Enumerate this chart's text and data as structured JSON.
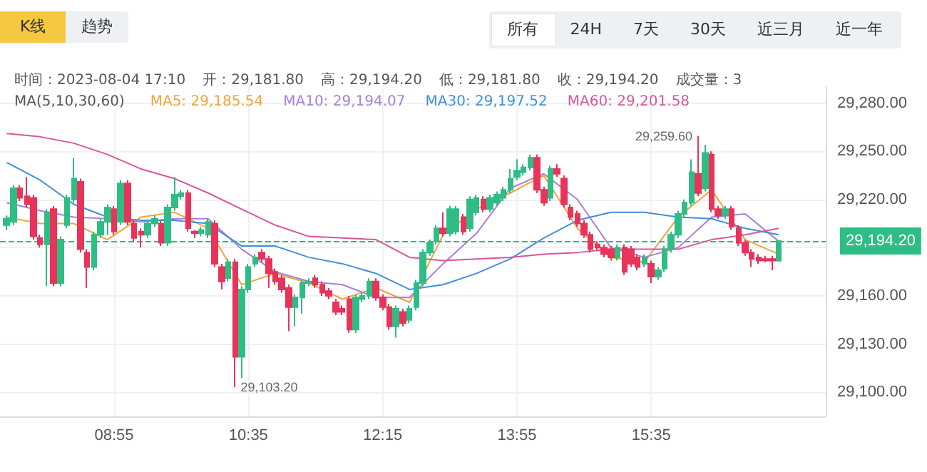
{
  "chart_data": {
    "type": "candlestick",
    "x": [
      7.5833,
      7.6667,
      7.75,
      7.8333,
      7.9167,
      8.0,
      8.0833,
      8.1667,
      8.25,
      8.3333,
      8.4167,
      8.5,
      8.5833,
      8.6667,
      8.75,
      8.8333,
      8.9167,
      9.0,
      9.0833,
      9.1667,
      9.25,
      9.3333,
      9.4167,
      9.5,
      9.5833,
      9.6667,
      9.75,
      9.8333,
      9.9167,
      10.0,
      10.0833,
      10.1667,
      10.25,
      10.3333,
      10.4167,
      10.5,
      10.5833,
      10.6667,
      10.75,
      10.8333,
      10.9167,
      11.0,
      11.0833,
      11.1667,
      11.25,
      11.3333,
      11.4167,
      11.5,
      11.5833,
      11.6667,
      11.75,
      11.8333,
      11.9167,
      12.0,
      12.0833,
      12.1667,
      12.25,
      12.3333,
      12.4167,
      12.5,
      12.5833,
      12.6667,
      12.75,
      12.8333,
      12.9167,
      13.0,
      13.0833,
      13.1667,
      13.25,
      13.3333,
      13.4167,
      13.5,
      13.5833,
      13.6667,
      13.75,
      13.8333,
      13.9167,
      14.0,
      14.0833,
      14.1667,
      14.25,
      14.3333,
      14.4167,
      14.5,
      14.5833,
      14.6667,
      14.75,
      14.8333,
      14.9167,
      15.0,
      15.0833,
      15.1667,
      15.25,
      15.3333,
      15.4167,
      15.5,
      15.5833,
      15.6667,
      15.75,
      15.8333,
      15.9167,
      16.0,
      16.0833,
      16.1667,
      16.25,
      16.3333,
      16.4167,
      16.5,
      16.5833,
      16.6667,
      16.75,
      16.8333,
      16.9167,
      17.0,
      17.0833,
      17.1667
    ],
    "ohlc": [
      [
        29204,
        29210,
        29201,
        29208
      ],
      [
        29206,
        29229,
        29204,
        29227
      ],
      [
        29227,
        29229,
        29219,
        29221
      ],
      [
        29222,
        29234,
        29215,
        29217
      ],
      [
        29221,
        29223,
        29195,
        29197
      ],
      [
        29196,
        29198,
        29190,
        29192
      ],
      [
        29192,
        29214,
        29166,
        29212
      ],
      [
        29214,
        29216,
        29166,
        29168
      ],
      [
        29168,
        29197,
        29166,
        29195
      ],
      [
        29204,
        29223,
        29202,
        29221
      ],
      [
        29220,
        29246,
        29218,
        29233
      ],
      [
        29231,
        29233,
        29187,
        29189
      ],
      [
        29187,
        29189,
        29165,
        29178
      ],
      [
        29178,
        29200,
        29176,
        29198
      ],
      [
        29198,
        29208,
        29196,
        29206
      ],
      [
        29206,
        29217,
        29198,
        29215
      ],
      [
        29214,
        29216,
        29198,
        29200
      ],
      [
        29206,
        29232,
        29204,
        29230
      ],
      [
        29230,
        29232,
        29204,
        29206
      ],
      [
        29205,
        29207,
        29194,
        29196
      ],
      [
        29200,
        29202,
        29190,
        29198
      ],
      [
        29198,
        29207,
        29196,
        29205
      ],
      [
        29205,
        29210,
        29203,
        29208
      ],
      [
        29205,
        29207,
        29191,
        29193
      ],
      [
        29193,
        29217,
        29191,
        29215
      ],
      [
        29215,
        29234,
        29213,
        29223
      ],
      [
        29222,
        29226,
        29220,
        29224
      ],
      [
        29224,
        29226,
        29200,
        29202
      ],
      [
        29200,
        29201,
        29196,
        29199
      ],
      [
        29199,
        29203,
        29197,
        29201
      ],
      [
        29198,
        29208,
        29196,
        29206
      ],
      [
        29205,
        29207,
        29178,
        29180
      ],
      [
        29178,
        29180,
        29164,
        29169
      ],
      [
        29171,
        29183,
        29169,
        29181
      ],
      [
        29181,
        29183,
        29103.2,
        29122
      ],
      [
        29122,
        29166,
        29109,
        29164
      ],
      [
        29164,
        29180,
        29162,
        29178
      ],
      [
        29180,
        29186,
        29178,
        29184
      ],
      [
        29187,
        29189,
        29181,
        29183
      ],
      [
        29183,
        29185,
        29165,
        29174
      ],
      [
        29175,
        29177,
        29167,
        29169
      ],
      [
        29171,
        29173,
        29162,
        29164
      ],
      [
        29165,
        29167,
        29138,
        29153
      ],
      [
        29153,
        29161,
        29141,
        29159
      ],
      [
        29159,
        29170,
        29149,
        29168
      ],
      [
        29168,
        29171,
        29166,
        29169
      ],
      [
        29171,
        29173,
        29165,
        29167
      ],
      [
        29167,
        29169,
        29160,
        29162
      ],
      [
        29163,
        29165,
        29158,
        29160
      ],
      [
        29156,
        29158,
        29148,
        29150
      ],
      [
        29152,
        29154,
        29148,
        29150
      ],
      [
        29158,
        29160,
        29137,
        29139
      ],
      [
        29139,
        29161,
        29137,
        29159
      ],
      [
        29158,
        29162,
        29156,
        29160
      ],
      [
        29160,
        29171,
        29158,
        29169
      ],
      [
        29169,
        29171,
        29157,
        29159
      ],
      [
        29159,
        29161,
        29151,
        29153
      ],
      [
        29153,
        29155,
        29139,
        29141
      ],
      [
        29141,
        29154,
        29134,
        29152
      ],
      [
        29150,
        29152,
        29141,
        29143
      ],
      [
        29145,
        29154,
        29143,
        29152
      ],
      [
        29153,
        29170,
        29151,
        29168
      ],
      [
        29168,
        29189,
        29166,
        29187
      ],
      [
        29187,
        29195,
        29185,
        29193
      ],
      [
        29194,
        29204,
        29192,
        29202
      ],
      [
        29202,
        29212,
        29197,
        29199
      ],
      [
        29199,
        29216,
        29197,
        29214
      ],
      [
        29200,
        29216,
        29198,
        29214
      ],
      [
        29209,
        29211,
        29198,
        29200
      ],
      [
        29202,
        29222,
        29200,
        29220
      ],
      [
        29212,
        29223,
        29210,
        29221
      ],
      [
        29220,
        29222,
        29212,
        29214
      ],
      [
        29214,
        29223,
        29212,
        29221
      ],
      [
        29218,
        29225,
        29216,
        29223
      ],
      [
        29221,
        29228,
        29219,
        29226
      ],
      [
        29226,
        29239,
        29224,
        29233
      ],
      [
        29234,
        29245,
        29232,
        29238
      ],
      [
        29237,
        29242,
        29235,
        29240
      ],
      [
        29240,
        29248,
        29238,
        29246
      ],
      [
        29246,
        29248,
        29224,
        29226
      ],
      [
        29226,
        29228,
        29216,
        29218
      ],
      [
        29221,
        29241,
        29219,
        29239
      ],
      [
        29239,
        29242,
        29234,
        29236
      ],
      [
        29233,
        29235,
        29215,
        29217
      ],
      [
        29215,
        29217,
        29207,
        29209
      ],
      [
        29211,
        29213,
        29203,
        29205
      ],
      [
        29205,
        29207,
        29196,
        29198
      ],
      [
        29198,
        29200,
        29187,
        29189
      ],
      [
        29192,
        29194,
        29188,
        29190
      ],
      [
        29190,
        29192,
        29184,
        29186
      ],
      [
        29189,
        29191,
        29182,
        29184
      ],
      [
        29184,
        29192,
        29182,
        29190
      ],
      [
        29190,
        29192,
        29173,
        29175
      ],
      [
        29189,
        29191,
        29178,
        29180
      ],
      [
        29184,
        29186,
        29176,
        29178
      ],
      [
        29180,
        29186,
        29178,
        29184
      ],
      [
        29180,
        29182,
        29168,
        29172
      ],
      [
        29172,
        29178,
        29170,
        29176
      ],
      [
        29177,
        29191,
        29175,
        29189
      ],
      [
        29189,
        29200,
        29187,
        29198
      ],
      [
        29198,
        29213,
        29196,
        29211
      ],
      [
        29211,
        29220,
        29209,
        29218
      ],
      [
        29218,
        29245,
        29216,
        29237
      ],
      [
        29236,
        29259.6,
        29222,
        29224
      ],
      [
        29227,
        29254,
        29225,
        29249
      ],
      [
        29248,
        29250,
        29212,
        29214
      ],
      [
        29214,
        29216,
        29208,
        29210
      ],
      [
        29210,
        29216,
        29208,
        29214
      ],
      [
        29214,
        29216,
        29201,
        29203
      ],
      [
        29202,
        29204,
        29191,
        29193
      ],
      [
        29193,
        29195,
        29185,
        29187
      ],
      [
        29187,
        29189,
        29178,
        29183
      ],
      [
        29184,
        29186,
        29180,
        29182
      ],
      [
        29183,
        29185,
        29181,
        29182
      ],
      [
        29183,
        29185,
        29176,
        29182
      ],
      [
        29181.8,
        29194.2,
        29181.8,
        29194.2
      ]
    ],
    "series": [
      {
        "type": "line",
        "name": "MA5: 29,185.54",
        "color": "#f0a43c",
        "x": [
          7.5833,
          8.0,
          8.4167,
          8.8333,
          9.25,
          9.6667,
          10.0833,
          10.5,
          10.9167,
          11.3333,
          11.75,
          12.1667,
          12.5833,
          13.0,
          13.4167,
          13.8333,
          14.25,
          14.6667,
          15.0833,
          15.5,
          15.9167,
          16.3333,
          16.75,
          17.1667
        ],
        "values": [
          29209,
          29205,
          29205,
          29195,
          29209,
          29212,
          29202,
          29167,
          29174,
          29168,
          29158,
          29165,
          29156,
          29198,
          29214,
          29224,
          29235,
          29202,
          29184,
          29181,
          29209,
          29226,
          29195,
          29186
        ]
      },
      {
        "type": "line",
        "name": "MA10: 29,194.07",
        "color": "#a97fd6",
        "x": [
          7.5833,
          8.0,
          8.4167,
          8.8333,
          9.25,
          9.6667,
          10.0833,
          10.5,
          10.9167,
          11.3333,
          11.75,
          12.1667,
          12.5833,
          13.0,
          13.4167,
          13.8333,
          14.25,
          14.6667,
          15.0833,
          15.5,
          15.9167,
          16.3333,
          16.75,
          17.1667
        ],
        "values": [
          29218,
          29213,
          29209,
          29208,
          29206,
          29208,
          29208,
          29189,
          29175,
          29169,
          29167,
          29159,
          29159,
          29180,
          29199,
          29227,
          29236,
          29220,
          29190,
          29184,
          29190,
          29209,
          29211,
          29194
        ]
      },
      {
        "type": "line",
        "name": "MA30: 29,197.52",
        "color": "#3f8fdc",
        "x": [
          7.5833,
          8.0,
          8.4167,
          8.8333,
          9.25,
          9.6667,
          10.0833,
          10.5,
          10.9167,
          11.3333,
          11.75,
          12.1667,
          12.5833,
          13.0,
          13.4167,
          13.8333,
          14.25,
          14.6667,
          15.0833,
          15.5,
          15.9167,
          16.3333,
          16.75,
          17.1667
        ],
        "values": [
          29243,
          29232,
          29217,
          29209,
          29207,
          29207,
          29205,
          29191,
          29191,
          29184,
          29180,
          29174,
          29164,
          29167,
          29174,
          29183,
          29196,
          29207,
          29212,
          29212,
          29209,
          29208,
          29202,
          29198
        ]
      },
      {
        "type": "line",
        "name": "MA60: 29,201.58",
        "color": "#d9559b",
        "x": [
          7.5833,
          8.0,
          8.4167,
          8.8333,
          9.25,
          9.6667,
          10.0833,
          10.5,
          10.9167,
          11.3333,
          11.75,
          12.1667,
          12.5833,
          13.0,
          13.4167,
          13.8333,
          14.25,
          14.6667,
          15.0833,
          15.5,
          15.9167,
          16.3333,
          16.75,
          17.1667
        ],
        "values": [
          29261,
          29259,
          29255,
          29248,
          29239,
          29233,
          29224,
          29214,
          29204,
          29197,
          29196,
          29195,
          29184,
          29182,
          29183,
          29184,
          29186,
          29187,
          29189,
          29189,
          29189,
          29195,
          29198,
          29202
        ]
      }
    ],
    "xlim": [
      7.5,
      17.75
    ],
    "xticks": [
      {
        "value": 8.9167,
        "label": "08:55"
      },
      {
        "value": 10.5833,
        "label": "10:35"
      },
      {
        "value": 12.25,
        "label": "12:15"
      },
      {
        "value": 13.9167,
        "label": "13:55"
      },
      {
        "value": 15.5833,
        "label": "15:35"
      }
    ],
    "ylim": [
      29085,
      29290
    ],
    "yticks": [
      {
        "value": 29100,
        "label": "29,100.00"
      },
      {
        "value": 29130,
        "label": "29,130.00"
      },
      {
        "value": 29160,
        "label": "29,160.00"
      },
      {
        "value": 29190,
        "label": null
      },
      {
        "value": 29220,
        "label": "29,220.00"
      },
      {
        "value": 29250,
        "label": "29,250.00"
      },
      {
        "value": 29280,
        "label": "29,280.00"
      }
    ],
    "grid": true,
    "legend": "top",
    "legend_title": "MA(5,10,30,60)",
    "ref_lines": [
      {
        "axis": "y",
        "value": 29194.2,
        "label": "29,194.20",
        "color": "#2ebd85",
        "line_style": "dashed"
      }
    ],
    "annotations": [
      "K线",
      "趋势",
      "所有",
      "24H",
      "7天",
      "30天",
      "近三月",
      "近一年",
      "时间：2023-08-04 17:10",
      "开：29,181.80",
      "高：29,194.20",
      "低：29,181.80",
      "收：29,194.20",
      "成交量：3",
      {
        "text": "29,259.60",
        "x": 16.1667,
        "y": 29259.6
      },
      {
        "text": "29,103.20",
        "x": 10.4167,
        "y": 29103.2
      }
    ]
  }
}
